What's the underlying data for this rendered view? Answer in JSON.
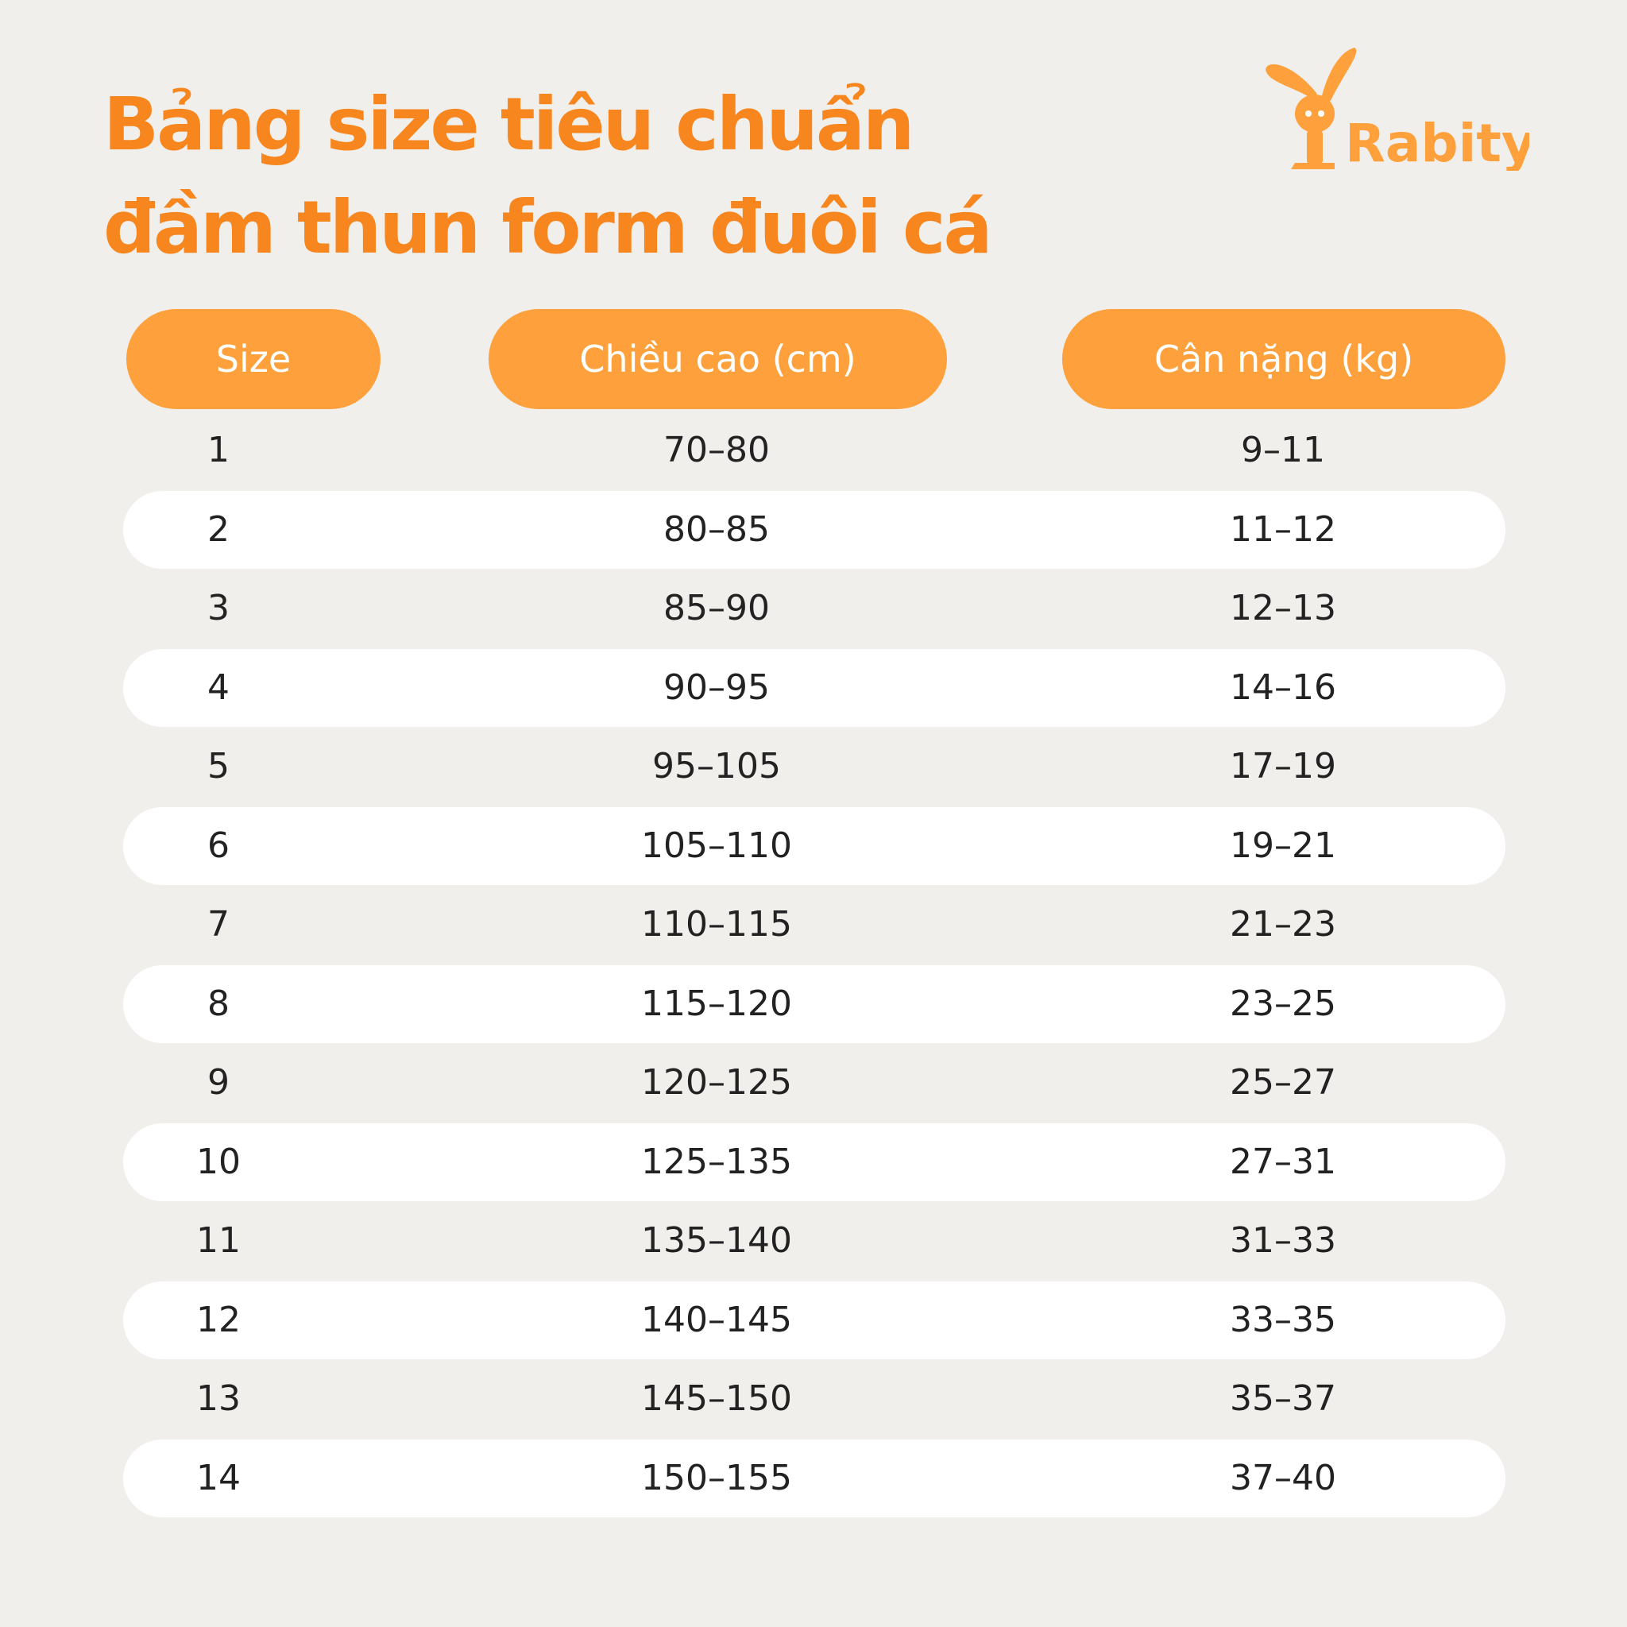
{
  "title": {
    "line1": "Bảng size tiêu chuẩn",
    "line2": "đầm thun form đuôi cá"
  },
  "logo": {
    "text": "Rabity"
  },
  "colors": {
    "title": "#f7861f",
    "header_pill": "#fea03b",
    "background": "#f1efeb",
    "row_stripe": "#ffffff"
  },
  "table": {
    "headers": [
      "Size",
      "Chiều cao (cm)",
      "Cân nặng (kg)"
    ],
    "rows": [
      [
        "1",
        "70–80",
        "9–11"
      ],
      [
        "2",
        "80–85",
        "11–12"
      ],
      [
        "3",
        "85–90",
        "12–13"
      ],
      [
        "4",
        "90–95",
        "14–16"
      ],
      [
        "5",
        "95–105",
        "17–19"
      ],
      [
        "6",
        "105–110",
        "19–21"
      ],
      [
        "7",
        "110–115",
        "21–23"
      ],
      [
        "8",
        "115–120",
        "23–25"
      ],
      [
        "9",
        "120–125",
        "25–27"
      ],
      [
        "10",
        "125–135",
        "27–31"
      ],
      [
        "11",
        "135–140",
        "31–33"
      ],
      [
        "12",
        "140–145",
        "33–35"
      ],
      [
        "13",
        "145–150",
        "35–37"
      ],
      [
        "14",
        "150–155",
        "37–40"
      ]
    ]
  }
}
